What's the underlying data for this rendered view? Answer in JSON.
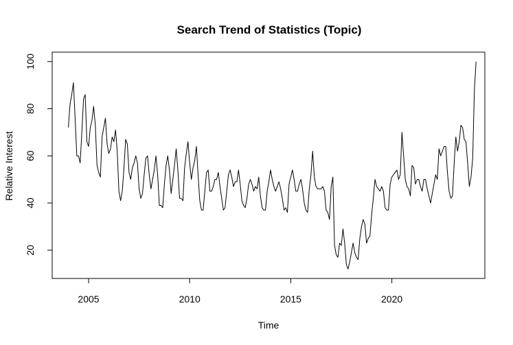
{
  "chart_data": {
    "type": "line",
    "title": "Search Trend of Statistics (Topic)",
    "xlabel": "Time",
    "ylabel": "Relative Interest",
    "xlim": [
      2003.2,
      2024.6
    ],
    "ylim": [
      8,
      104
    ],
    "xticks": [
      2005,
      2010,
      2015,
      2020
    ],
    "yticks": [
      20,
      40,
      60,
      80,
      100
    ],
    "grid": false,
    "series": [
      {
        "x_start": 2004.0,
        "x_step": 0.08333,
        "values": [
          72,
          82,
          86,
          91,
          76,
          60,
          60,
          57,
          70,
          84,
          86,
          66,
          64,
          72,
          75,
          81,
          73,
          56,
          53,
          51,
          68,
          72,
          76,
          65,
          61,
          63,
          68,
          66,
          71,
          62,
          45,
          41,
          45,
          55,
          67,
          65,
          53,
          50,
          55,
          57,
          60,
          57,
          46,
          42,
          44,
          52,
          59,
          60,
          52,
          46,
          50,
          54,
          60,
          52,
          39,
          39,
          38,
          48,
          56,
          60,
          54,
          44,
          50,
          56,
          63,
          54,
          42,
          42,
          41,
          55,
          61,
          66,
          57,
          50,
          55,
          58,
          64,
          52,
          41,
          37,
          37,
          45,
          53,
          54,
          45,
          45,
          47,
          50,
          50,
          53,
          47,
          42,
          37,
          38,
          45,
          52,
          54,
          51,
          47,
          49,
          49,
          54,
          48,
          41,
          39,
          38,
          42,
          48,
          50,
          48,
          45,
          47,
          46,
          51,
          43,
          38,
          37,
          37,
          45,
          49,
          54,
          50,
          47,
          45,
          47,
          49,
          46,
          42,
          37,
          38,
          36,
          48,
          51,
          54,
          50,
          45,
          45,
          48,
          50,
          46,
          40,
          37,
          36,
          46,
          52,
          62,
          51,
          47,
          46,
          46,
          46,
          47,
          45,
          37,
          36,
          33,
          47,
          51,
          22,
          18,
          17,
          23,
          22,
          29,
          23,
          14,
          12,
          15,
          19,
          23,
          19,
          17,
          16,
          25,
          30,
          33,
          31,
          23,
          25,
          26,
          35,
          42,
          50,
          47,
          46,
          45,
          47,
          45,
          38,
          37,
          37,
          48,
          51,
          52,
          53,
          54,
          50,
          52,
          70,
          60,
          50,
          47,
          46,
          43,
          56,
          55,
          48,
          50,
          50,
          47,
          45,
          50,
          50,
          46,
          43,
          40,
          44,
          48,
          52,
          50,
          63,
          60,
          62,
          64,
          64,
          53,
          45,
          42,
          43,
          57,
          68,
          62,
          66,
          73,
          72,
          67,
          66,
          57,
          47,
          51,
          59,
          88,
          100
        ]
      }
    ]
  }
}
